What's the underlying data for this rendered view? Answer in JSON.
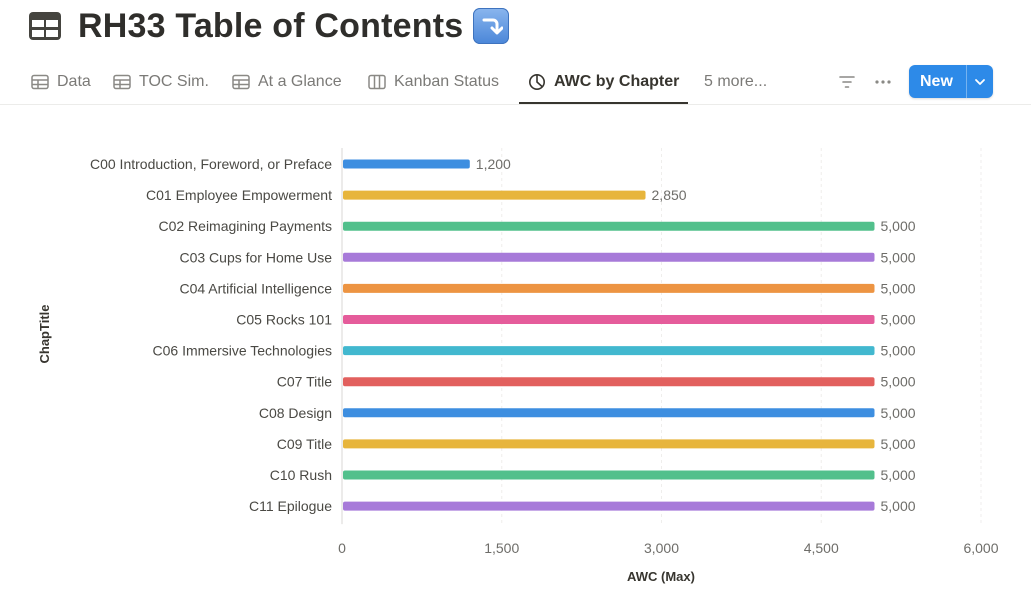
{
  "page": {
    "title": "RH33 Table of Contents",
    "title_emoji": "right-arrow-curving-down-icon"
  },
  "tabs": [
    {
      "label": "Data",
      "icon": "table-icon"
    },
    {
      "label": "TOC Sim.",
      "icon": "table-icon"
    },
    {
      "label": "At a Glance",
      "icon": "table-icon"
    },
    {
      "label": "Kanban Status",
      "icon": "board-icon"
    },
    {
      "label": "AWC by Chapter",
      "icon": "chart-pie-icon",
      "active": true
    },
    {
      "label": "5 more...",
      "icon": ""
    }
  ],
  "toolbar": {
    "filter_icon": "filter-icon",
    "more_icon": "more-horizontal-icon",
    "new_label": "New",
    "new_chevron_icon": "chevron-down-icon",
    "accent": "#2d8ae8"
  },
  "chart_data": {
    "type": "bar",
    "orientation": "horizontal",
    "xlabel": "AWC (Max)",
    "ylabel": "ChapTitle",
    "xlim": [
      0,
      6000
    ],
    "xticks": [
      "0",
      "1,500",
      "3,000",
      "4,500",
      "6,000"
    ],
    "xtick_values": [
      0,
      1500,
      3000,
      4500,
      6000
    ],
    "grid": true,
    "categories": [
      "C00 Introduction, Foreword, or Preface",
      "C01 Employee Empowerment",
      "C02 Reimagining Payments",
      "C03 Cups for Home Use",
      "C04 Artificial Intelligence",
      "C05 Rocks 101",
      "C06 Immersive Technologies",
      "C07 Title",
      "C08 Design",
      "C09 Title",
      "C10 Rush",
      "C11 Epilogue"
    ],
    "values": [
      1200,
      2850,
      5000,
      5000,
      5000,
      5000,
      5000,
      5000,
      5000,
      5000,
      5000,
      5000
    ],
    "value_labels": [
      "1,200",
      "2,850",
      "5,000",
      "5,000",
      "5,000",
      "5,000",
      "5,000",
      "5,000",
      "5,000",
      "5,000",
      "5,000",
      "5,000"
    ],
    "colors": [
      "#3d8ee0",
      "#e7b53c",
      "#52c08c",
      "#a77ad9",
      "#ed9442",
      "#e55c9b",
      "#42b8cf",
      "#e2605e",
      "#3d8ee0",
      "#e7b53c",
      "#52c08c",
      "#a77ad9"
    ]
  }
}
